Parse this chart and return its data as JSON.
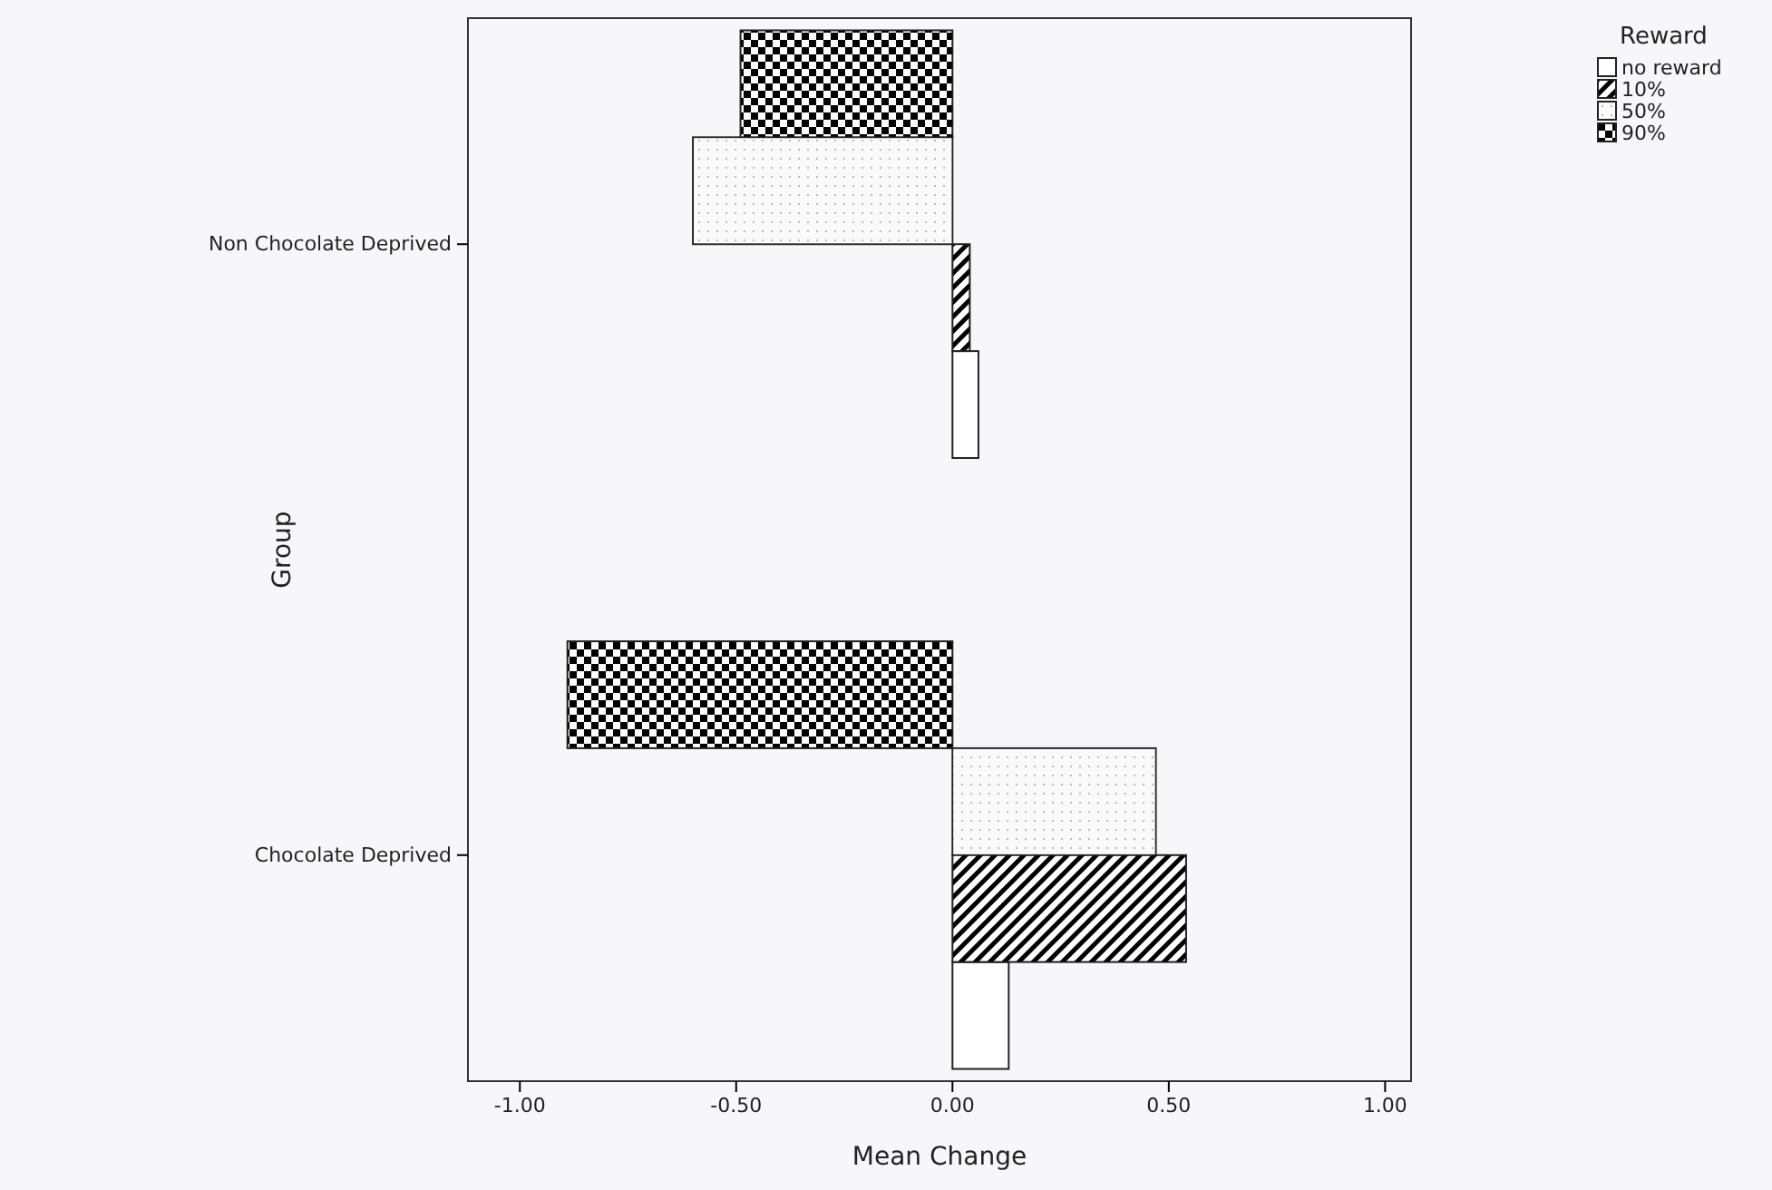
{
  "chart_data": {
    "type": "bar",
    "orientation": "horizontal",
    "categories": [
      "Non Chocolate Deprived",
      "Chocolate Deprived"
    ],
    "xlabel": "Mean Change",
    "ylabel": "Group",
    "legend_title": "Reward",
    "legend": "top right",
    "series": [
      {
        "name": "no reward",
        "color": "#ffffff",
        "values": [
          0.06,
          0.13
        ]
      },
      {
        "name": "10%",
        "color": "#000000",
        "values": [
          0.04,
          0.54
        ]
      },
      {
        "name": "50%",
        "color": "#bbbbbb",
        "values": [
          -0.6,
          0.47
        ]
      },
      {
        "name": "90%",
        "color": "#000000",
        "values": [
          -0.49,
          -0.89
        ]
      }
    ],
    "xlim": [
      -1.12,
      1.06
    ],
    "xticks": [
      {
        "value": -1,
        "label": "-1.00"
      },
      {
        "value": -0.5,
        "label": "-0.50"
      },
      {
        "value": 0,
        "label": "0.00"
      },
      {
        "value": 0.5,
        "label": "0.50"
      },
      {
        "value": 1,
        "label": "1.00"
      }
    ]
  }
}
